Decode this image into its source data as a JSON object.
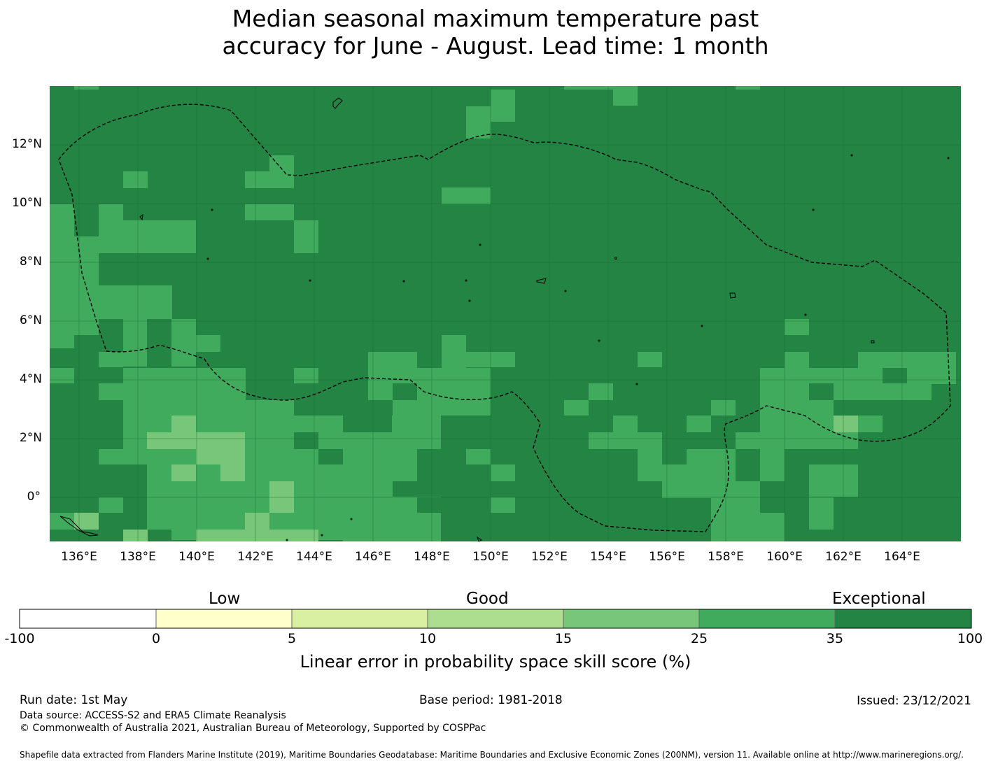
{
  "title": {
    "line1": "Median seasonal maximum temperature past",
    "line2": "accuracy for June - August. Lead time: 1 month"
  },
  "map": {
    "lat_ticks": [
      "12°N",
      "10°N",
      "8°N",
      "6°N",
      "4°N",
      "2°N",
      "0°"
    ],
    "lon_ticks": [
      "136°E",
      "138°E",
      "140°E",
      "142°E",
      "144°E",
      "146°E",
      "148°E",
      "150°E",
      "152°E",
      "154°E",
      "156°E",
      "158°E",
      "160°E",
      "162°E",
      "164°E"
    ],
    "background_color": "#238443",
    "boundary_style": "dashed"
  },
  "colorbar": {
    "categories": [
      "Low",
      "Good",
      "Exceptional"
    ],
    "tick_labels": [
      "-100",
      "0",
      "5",
      "10",
      "15",
      "25",
      "35",
      "100"
    ],
    "colors": [
      "#ffffff",
      "#ffffcc",
      "#d9f0a3",
      "#addd8e",
      "#78c679",
      "#41ab5d",
      "#238443"
    ],
    "title": "Linear error in probability space skill score (%)"
  },
  "footer": {
    "run_date": "Run date: 1st May",
    "base_period": "Base period: 1981-2018",
    "issued": "Issued: 23/12/2021",
    "data_source": "Data source: ACCESS-S2 and ERA5 Climate Reanalysis",
    "copyright": "© Commonwealth of Australia 2021, Australian Bureau of Meteorology, Supported by COSPPac",
    "shapefile": "Shapefile data extracted from Flanders Marine Institute (2019), Maritime Boundaries Geodatabase: Maritime Boundaries and Exclusive Economic Zones (200NM), version 11. Available online at http://www.marineregions.org/."
  }
}
